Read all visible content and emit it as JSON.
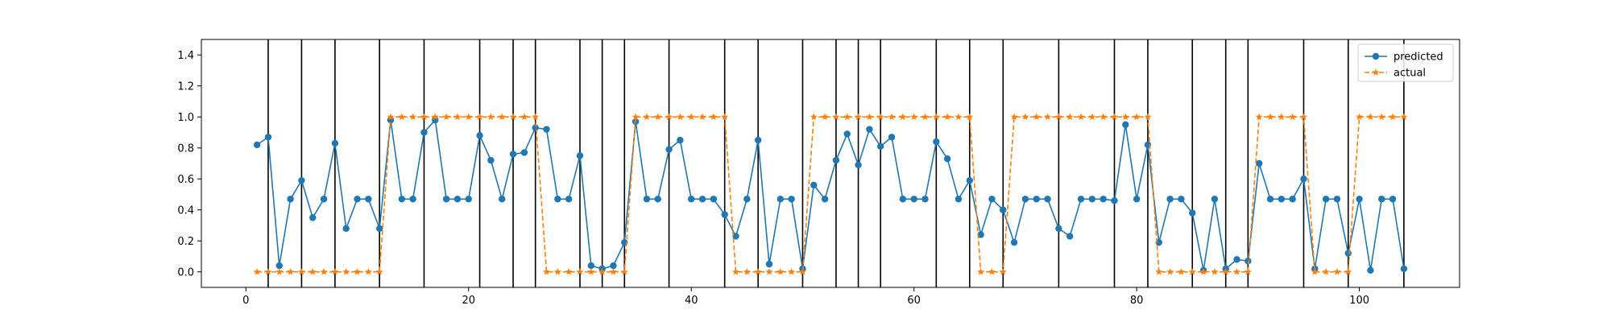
{
  "chart_data": {
    "type": "line",
    "xlim": [
      -4,
      109
    ],
    "ylim": [
      -0.1,
      1.5
    ],
    "xticks": [
      0,
      20,
      40,
      60,
      80,
      100
    ],
    "yticks": [
      0.0,
      0.2,
      0.4,
      0.6,
      0.8,
      1.0,
      1.2,
      1.4
    ],
    "vlines": [
      2,
      5,
      8,
      12,
      16,
      21,
      24,
      26,
      30,
      32,
      34,
      38,
      43,
      46,
      50,
      53,
      55,
      57,
      62,
      65,
      68,
      73,
      78,
      81,
      85,
      88,
      90,
      95,
      99,
      104
    ],
    "legend": {
      "position": "upper right"
    },
    "series": [
      {
        "name": "predicted",
        "color": "#1f77b4",
        "marker": "circle",
        "linestyle": "solid",
        "x": [
          1,
          2,
          3,
          4,
          5,
          6,
          7,
          8,
          9,
          10,
          11,
          12,
          13,
          14,
          15,
          16,
          17,
          18,
          19,
          20,
          21,
          22,
          23,
          24,
          25,
          26,
          27,
          28,
          29,
          30,
          31,
          32,
          33,
          34,
          35,
          36,
          37,
          38,
          39,
          40,
          41,
          42,
          43,
          44,
          45,
          46,
          47,
          48,
          49,
          50,
          51,
          52,
          53,
          54,
          55,
          56,
          57,
          58,
          59,
          60,
          61,
          62,
          63,
          64,
          65,
          66,
          67,
          68,
          69,
          70,
          71,
          72,
          73,
          74,
          75,
          76,
          77,
          78,
          79,
          80,
          81,
          82,
          83,
          84,
          85,
          86,
          87,
          88,
          89,
          90,
          91,
          92,
          93,
          94,
          95,
          96,
          97,
          98,
          99,
          100,
          101,
          102,
          103,
          104
        ],
        "y": [
          0.82,
          0.87,
          0.04,
          0.47,
          0.59,
          0.35,
          0.47,
          0.83,
          0.28,
          0.47,
          0.47,
          0.28,
          0.98,
          0.47,
          0.47,
          0.9,
          0.98,
          0.47,
          0.47,
          0.47,
          0.88,
          0.72,
          0.47,
          0.76,
          0.77,
          0.93,
          0.92,
          0.47,
          0.47,
          0.75,
          0.04,
          0.02,
          0.04,
          0.19,
          0.97,
          0.47,
          0.47,
          0.79,
          0.85,
          0.47,
          0.47,
          0.47,
          0.37,
          0.23,
          0.47,
          0.85,
          0.05,
          0.47,
          0.47,
          0.02,
          0.56,
          0.47,
          0.72,
          0.89,
          0.69,
          0.92,
          0.81,
          0.87,
          0.47,
          0.47,
          0.47,
          0.84,
          0.73,
          0.47,
          0.59,
          0.24,
          0.47,
          0.4,
          0.19,
          0.47,
          0.47,
          0.47,
          0.28,
          0.23,
          0.47,
          0.47,
          0.47,
          0.46,
          0.95,
          0.47,
          0.82,
          0.19,
          0.47,
          0.47,
          0.38,
          0.01,
          0.47,
          0.02,
          0.08,
          0.07,
          0.7,
          0.47,
          0.47,
          0.47,
          0.6,
          0.02,
          0.47,
          0.47,
          0.12,
          0.47,
          0.01,
          0.47,
          0.47,
          0.02
        ]
      },
      {
        "name": "actual",
        "color": "#ff7f0e",
        "marker": "star",
        "linestyle": "dashed",
        "x": [
          1,
          2,
          3,
          4,
          5,
          6,
          7,
          8,
          9,
          10,
          11,
          12,
          13,
          14,
          15,
          16,
          17,
          18,
          19,
          20,
          21,
          22,
          23,
          24,
          25,
          26,
          27,
          28,
          29,
          30,
          31,
          32,
          33,
          34,
          35,
          36,
          37,
          38,
          39,
          40,
          41,
          42,
          43,
          44,
          45,
          46,
          47,
          48,
          49,
          50,
          51,
          52,
          53,
          54,
          55,
          56,
          57,
          58,
          59,
          60,
          61,
          62,
          63,
          64,
          65,
          66,
          67,
          68,
          69,
          70,
          71,
          72,
          73,
          74,
          75,
          76,
          77,
          78,
          79,
          80,
          81,
          82,
          83,
          84,
          85,
          86,
          87,
          88,
          89,
          90,
          91,
          92,
          93,
          94,
          95,
          96,
          97,
          98,
          99,
          100,
          101,
          102,
          103,
          104
        ],
        "y": [
          0,
          0,
          0,
          0,
          0,
          0,
          0,
          0,
          0,
          0,
          0,
          0,
          1,
          1,
          1,
          1,
          1,
          1,
          1,
          1,
          1,
          1,
          1,
          1,
          1,
          1,
          0,
          0,
          0,
          0,
          0,
          0,
          0,
          0,
          1,
          1,
          1,
          1,
          1,
          1,
          1,
          1,
          1,
          0,
          0,
          0,
          0,
          0,
          0,
          0,
          1,
          1,
          1,
          1,
          1,
          1,
          1,
          1,
          1,
          1,
          1,
          1,
          1,
          1,
          1,
          0,
          0,
          0,
          1,
          1,
          1,
          1,
          1,
          1,
          1,
          1,
          1,
          1,
          1,
          1,
          1,
          0,
          0,
          0,
          0,
          0,
          0,
          0,
          0,
          0,
          1,
          1,
          1,
          1,
          1,
          0,
          0,
          0,
          0,
          1,
          1,
          1,
          1,
          1
        ]
      }
    ]
  }
}
